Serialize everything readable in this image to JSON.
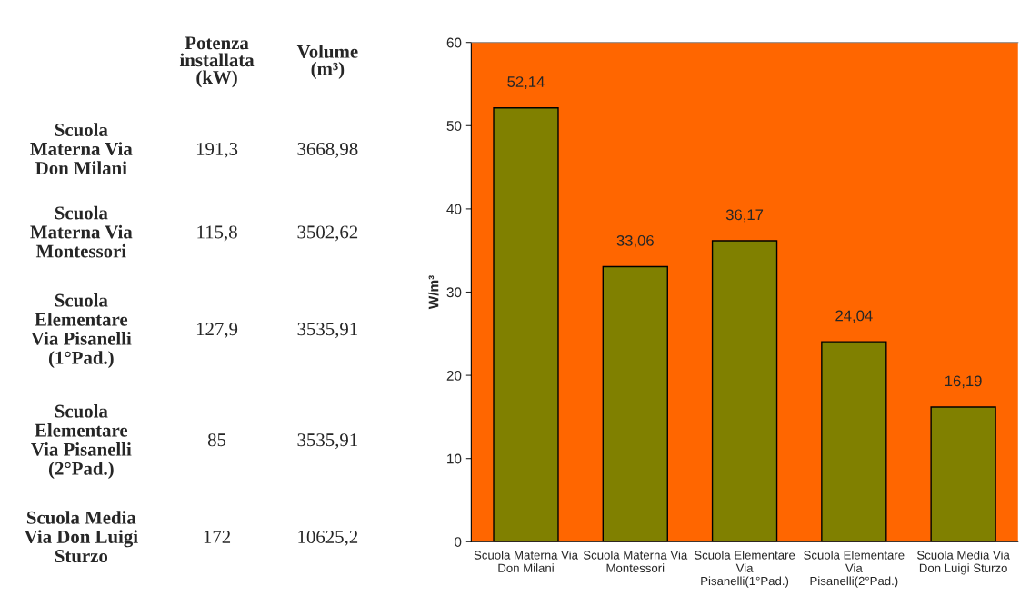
{
  "chart_data": [
    {
      "type": "other",
      "categories": [
        "Scuola Materna Via Don Milani",
        "Scuola Materna Via Montessori",
        "Scuola Elementare Via Pisanelli (1°Pad.)",
        "Scuola Elementare Via Pisanelli (2°Pad.)",
        "Scuola Media Via Don Luigi Sturzo"
      ],
      "series": [
        {
          "name": "Potenza installata (kW)",
          "values": [
            191.3,
            115.8,
            127.9,
            85,
            172
          ],
          "value_labels": [
            "191,3",
            "115,8",
            "127,9",
            "85",
            "172"
          ]
        },
        {
          "name": "Volume (m³)",
          "values": [
            3668.98,
            3502.62,
            3535.91,
            3535.91,
            10625.2
          ],
          "value_labels": [
            "3668,98",
            "3502,62",
            "3535,91",
            "3535,91",
            "10625,2"
          ]
        }
      ]
    },
    {
      "type": "bar",
      "ylabel": "W/m³",
      "categories": [
        "Scuola Materna Via Don Milani",
        "Scuola Materna Via Montessori",
        "Scuola Elementare Via Pisanelli(1°Pad.)",
        "Scuola Elementare Via Pisanelli(2°Pad.)",
        "Scuola Media Via Don Luigi Sturzo"
      ],
      "values": [
        52.14,
        33.06,
        36.17,
        24.04,
        16.19
      ],
      "value_labels": [
        "52,14",
        "33,06",
        "36,17",
        "24,04",
        "16,19"
      ],
      "color": "#808000",
      "ylim": [
        0,
        60
      ],
      "yticks": [
        0,
        10,
        20,
        30,
        40,
        50,
        60
      ],
      "grid": false,
      "legend": false
    }
  ]
}
